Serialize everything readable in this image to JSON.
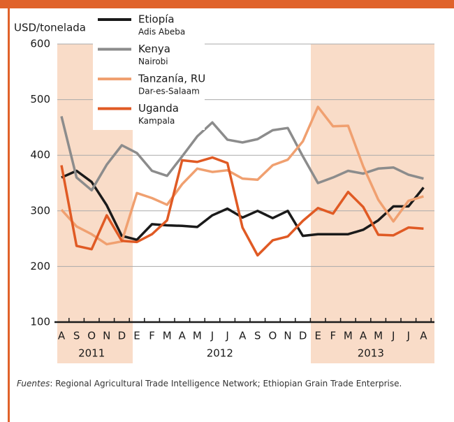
{
  "chart_data": {
    "type": "line",
    "y_label": "USD/tonelada",
    "categories": [
      "A",
      "S",
      "O",
      "N",
      "D",
      "E",
      "F",
      "M",
      "A",
      "M",
      "J",
      "J",
      "A",
      "S",
      "O",
      "N",
      "D",
      "E",
      "F",
      "M",
      "A",
      "M",
      "J",
      "J",
      "A"
    ],
    "years": [
      "2011",
      "2012",
      "2013"
    ],
    "ylim": [
      100,
      600
    ],
    "yticks": [
      100,
      200,
      300,
      400,
      500,
      600
    ],
    "grid": true,
    "series": [
      {
        "name": "Etiopía",
        "city": "Adis Abeba",
        "color": "#1a1a1a",
        "values": [
          360,
          372,
          352,
          310,
          255,
          248,
          276,
          274,
          273,
          271,
          292,
          304,
          288,
          300,
          287,
          300,
          255,
          258,
          258,
          258,
          266,
          283,
          308,
          308,
          342
        ]
      },
      {
        "name": "Kenya",
        "city": "Nairobi",
        "color": "#8c8c8c",
        "values": [
          470,
          360,
          337,
          383,
          418,
          404,
          372,
          363,
          398,
          434,
          459,
          428,
          423,
          429,
          445,
          449,
          398,
          350,
          360,
          372,
          367,
          376,
          378,
          365,
          358
        ]
      },
      {
        "name": "Tanzanía, RU",
        "city": "Dar-es-Salaam",
        "color": "#f0a070",
        "values": [
          302,
          272,
          258,
          240,
          245,
          332,
          323,
          311,
          348,
          376,
          370,
          373,
          358,
          356,
          382,
          392,
          425,
          487,
          452,
          453,
          380,
          320,
          281,
          318,
          326
        ]
      },
      {
        "name": "Uganda",
        "city": "Kampala",
        "color": "#e05a24",
        "values": [
          382,
          237,
          231,
          292,
          246,
          244,
          258,
          283,
          391,
          388,
          396,
          386,
          270,
          220,
          247,
          254,
          282,
          305,
          295,
          334,
          307,
          257,
          256,
          270,
          268
        ]
      }
    ],
    "source_label": "Fuentes",
    "source": ": Regional Agricultural Trade Intelligence Network; Ethiopian Grain Trade Enterprise."
  }
}
